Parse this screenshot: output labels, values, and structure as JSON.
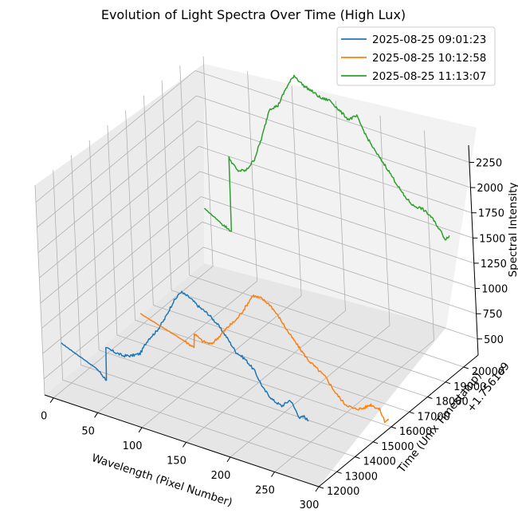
{
  "chart_data": {
    "type": "line",
    "title": "Evolution of Light Spectra Over Time (High Lux)",
    "xlabel": "Wavelength (Pixel Number)",
    "ylabel": "Time (Unix Timestamp)",
    "zlabel": "Spectral Intensity",
    "y_offset_label": "+1.7561e9",
    "xticks": [
      "0",
      "50",
      "100",
      "150",
      "200",
      "250",
      "300"
    ],
    "yticks": [
      "12000",
      "13000",
      "14000",
      "15000",
      "16000",
      "17000",
      "18000",
      "19000",
      "20000"
    ],
    "zticks": [
      "500",
      "750",
      "1000",
      "1250",
      "1500",
      "1750",
      "2000",
      "2250"
    ],
    "xlim": [
      -10,
      300
    ],
    "ylim": [
      12000,
      20800
    ],
    "zlim": [
      340,
      2420
    ],
    "grid": true,
    "legend_position": "top-right",
    "series": [
      {
        "name": "2025-08-25 09:01:23",
        "color": "#1f77b4",
        "time": 12083,
        "x": [
          10,
          50,
          60,
          61,
          80,
          90,
          100,
          110,
          120,
          130,
          140,
          150,
          160,
          170,
          180,
          190,
          200,
          210,
          220,
          230,
          240,
          250,
          260,
          270,
          280,
          285,
          290
        ],
        "y": [
          900,
          760,
          680,
          1000,
          980,
          1010,
          1060,
          1230,
          1340,
          1490,
          1680,
          1820,
          1790,
          1730,
          1690,
          1620,
          1520,
          1400,
          1360,
          1280,
          1120,
          1040,
          1010,
          1100,
          950,
          980,
          950
        ]
      },
      {
        "name": "2025-08-25 10:12:58",
        "color": "#ff7f0e",
        "time": 16358,
        "x": [
          10,
          60,
          70,
          71,
          80,
          90,
          100,
          110,
          120,
          130,
          140,
          150,
          160,
          170,
          180,
          190,
          200,
          210,
          220,
          230,
          240,
          250,
          260,
          270,
          280,
          285,
          290
        ],
        "y": [
          560,
          430,
          400,
          540,
          490,
          490,
          600,
          720,
          820,
          960,
          1120,
          1120,
          1080,
          980,
          860,
          760,
          660,
          600,
          540,
          420,
          340,
          320,
          350,
          420,
          400,
          300,
          330
        ]
      },
      {
        "name": "2025-08-25 11:13:07",
        "color": "#2ca02c",
        "time": 20020,
        "x": [
          10,
          30,
          40,
          41,
          50,
          60,
          70,
          80,
          90,
          100,
          110,
          120,
          130,
          140,
          150,
          160,
          170,
          180,
          190,
          200,
          210,
          220,
          230,
          240,
          250,
          260,
          270,
          280,
          285,
          290
        ],
        "y": [
          1060,
          960,
          920,
          1650,
          1550,
          1580,
          1720,
          1970,
          2280,
          2340,
          2540,
          2700,
          2630,
          2600,
          2560,
          2570,
          2500,
          2440,
          2500,
          2330,
          2200,
          2100,
          1980,
          1860,
          1790,
          1790,
          1740,
          1630,
          1560,
          1610
        ]
      }
    ]
  }
}
